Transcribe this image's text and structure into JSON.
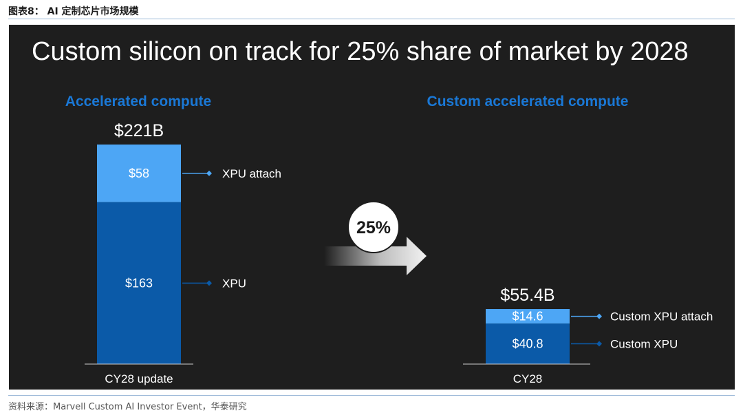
{
  "caption": "图表8： AI 定制芯片市场规模",
  "slide_title": "Custom silicon on track for 25% share of market by 2028",
  "source": "资料来源：Marvell Custom AI Investor Event，华泰研究",
  "colors": {
    "background": "#1e1e1e",
    "panel_heading": "#1a78d6",
    "attach_segment": "#4da6f5",
    "base_segment": "#0b5aa8",
    "text": "#ffffff"
  },
  "chart_data": [
    {
      "type": "bar",
      "stacked": true,
      "panel_title": "Accelerated compute",
      "total_label": "$221B",
      "categories": [
        "CY28 update"
      ],
      "series": [
        {
          "name": "XPU",
          "values": [
            163
          ],
          "label": "$163"
        },
        {
          "name": "XPU attach",
          "values": [
            58
          ],
          "label": "$58"
        }
      ]
    },
    {
      "type": "bar",
      "stacked": true,
      "panel_title": "Custom accelerated compute",
      "total_label": "$55.4B",
      "categories": [
        "CY28"
      ],
      "series": [
        {
          "name": "Custom XPU",
          "values": [
            40.8
          ],
          "label": "$40.8"
        },
        {
          "name": "Custom XPU attach",
          "values": [
            14.6
          ],
          "label": "$14.6"
        }
      ]
    }
  ],
  "arrow": {
    "label": "25%"
  }
}
